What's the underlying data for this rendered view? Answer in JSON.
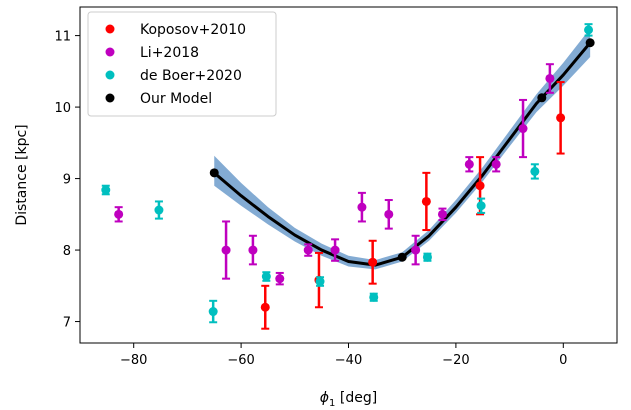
{
  "chart_data": {
    "type": "scatter",
    "title": "",
    "xlabel": "ϕ",
    "xlabel_sub": "1",
    "xlabel_unit": " [deg]",
    "ylabel": "Distance [kpc]",
    "xlim": [
      -90,
      10
    ],
    "ylim": [
      6.7,
      11.4
    ],
    "xticks": [
      -80,
      -60,
      -40,
      -20,
      0
    ],
    "xtick_labels": [
      "−80",
      "−60",
      "−40",
      "−20",
      "0"
    ],
    "yticks": [
      7,
      8,
      9,
      10,
      11
    ],
    "ytick_labels": [
      "7",
      "8",
      "9",
      "10",
      "11"
    ],
    "grid": false,
    "legend_position": "top-left",
    "series": [
      {
        "name": "Koposov+2010",
        "color": "#ff0000",
        "points": [
          {
            "x": -55.5,
            "y": 7.2,
            "err": 0.3
          },
          {
            "x": -45.5,
            "y": 7.58,
            "err": 0.38
          },
          {
            "x": -35.5,
            "y": 7.83,
            "err": 0.3
          },
          {
            "x": -25.5,
            "y": 8.68,
            "err": 0.4
          },
          {
            "x": -15.5,
            "y": 8.9,
            "err": 0.4
          },
          {
            "x": -0.5,
            "y": 9.85,
            "err": 0.5
          }
        ]
      },
      {
        "name": "Li+2018",
        "color": "#bf00bf",
        "points": [
          {
            "x": -82.8,
            "y": 8.5,
            "err": 0.1
          },
          {
            "x": -62.8,
            "y": 8.0,
            "err": 0.4
          },
          {
            "x": -57.8,
            "y": 8.0,
            "err": 0.2
          },
          {
            "x": -52.8,
            "y": 7.6,
            "err": 0.08
          },
          {
            "x": -47.5,
            "y": 8.0,
            "err": 0.08
          },
          {
            "x": -42.5,
            "y": 8.0,
            "err": 0.15
          },
          {
            "x": -37.5,
            "y": 8.6,
            "err": 0.2
          },
          {
            "x": -32.5,
            "y": 8.5,
            "err": 0.2
          },
          {
            "x": -27.5,
            "y": 8.0,
            "err": 0.2
          },
          {
            "x": -22.5,
            "y": 8.5,
            "err": 0.08
          },
          {
            "x": -17.5,
            "y": 9.2,
            "err": 0.1
          },
          {
            "x": -12.5,
            "y": 9.2,
            "err": 0.1
          },
          {
            "x": -7.5,
            "y": 9.7,
            "err": 0.4
          },
          {
            "x": -2.5,
            "y": 10.4,
            "err": 0.2
          }
        ]
      },
      {
        "name": "de Boer+2020",
        "color": "#00bfbf",
        "points": [
          {
            "x": -85.2,
            "y": 8.84,
            "err": 0.06
          },
          {
            "x": -75.3,
            "y": 8.56,
            "err": 0.12
          },
          {
            "x": -65.2,
            "y": 7.14,
            "err": 0.15
          },
          {
            "x": -55.3,
            "y": 7.63,
            "err": 0.06
          },
          {
            "x": -45.3,
            "y": 7.56,
            "err": 0.06
          },
          {
            "x": -35.3,
            "y": 7.34,
            "err": 0.05
          },
          {
            "x": -25.3,
            "y": 7.9,
            "err": 0.05
          },
          {
            "x": -15.3,
            "y": 8.62,
            "err": 0.1
          },
          {
            "x": -5.3,
            "y": 9.1,
            "err": 0.1
          },
          {
            "x": 4.7,
            "y": 11.08,
            "err": 0.08
          }
        ]
      },
      {
        "name": "Our Model",
        "color": "#000000",
        "points": [
          {
            "x": -65,
            "y": 9.08
          },
          {
            "x": -30,
            "y": 7.9
          },
          {
            "x": -4,
            "y": 10.13
          },
          {
            "x": 5,
            "y": 10.9
          }
        ]
      }
    ],
    "model_curve": {
      "color": "#000000",
      "band_color": "#5a8fc4",
      "points": [
        {
          "x": -65,
          "y": 9.08,
          "lo": 8.9,
          "hi": 9.32
        },
        {
          "x": -60,
          "y": 8.76,
          "lo": 8.62,
          "hi": 8.94
        },
        {
          "x": -55,
          "y": 8.47,
          "lo": 8.36,
          "hi": 8.6
        },
        {
          "x": -50,
          "y": 8.21,
          "lo": 8.12,
          "hi": 8.31
        },
        {
          "x": -45,
          "y": 8.0,
          "lo": 7.92,
          "hi": 8.09
        },
        {
          "x": -40,
          "y": 7.84,
          "lo": 7.77,
          "hi": 7.92
        },
        {
          "x": -35,
          "y": 7.79,
          "lo": 7.73,
          "hi": 7.86
        },
        {
          "x": -30,
          "y": 7.9,
          "lo": 7.84,
          "hi": 7.97
        },
        {
          "x": -25,
          "y": 8.2,
          "lo": 8.13,
          "hi": 8.28
        },
        {
          "x": -20,
          "y": 8.6,
          "lo": 8.52,
          "hi": 8.7
        },
        {
          "x": -15,
          "y": 9.05,
          "lo": 8.96,
          "hi": 9.16
        },
        {
          "x": -10,
          "y": 9.55,
          "lo": 9.45,
          "hi": 9.67
        },
        {
          "x": -5,
          "y": 10.05,
          "lo": 9.93,
          "hi": 10.18
        },
        {
          "x": 0,
          "y": 10.45,
          "lo": 10.3,
          "hi": 10.62
        },
        {
          "x": 5,
          "y": 10.9,
          "lo": 10.7,
          "hi": 11.1
        }
      ]
    }
  }
}
